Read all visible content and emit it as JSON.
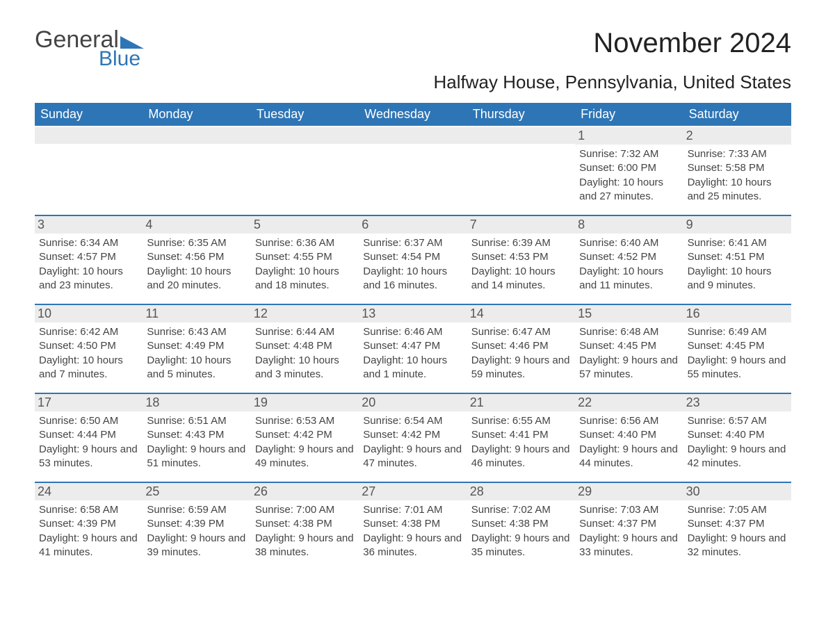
{
  "logo": {
    "text1": "General",
    "text2": "Blue"
  },
  "title": "November 2024",
  "location": "Halfway House, Pennsylvania, United States",
  "colors": {
    "accent": "#2e75b6",
    "header_bg": "#2e75b6",
    "daynum_bg": "#ececec",
    "text": "#333333",
    "background": "#ffffff"
  },
  "calendar": {
    "weekdays": [
      "Sunday",
      "Monday",
      "Tuesday",
      "Wednesday",
      "Thursday",
      "Friday",
      "Saturday"
    ],
    "weeks": [
      [
        null,
        null,
        null,
        null,
        null,
        {
          "day": 1,
          "sunrise": "7:32 AM",
          "sunset": "6:00 PM",
          "daylight": "10 hours and 27 minutes."
        },
        {
          "day": 2,
          "sunrise": "7:33 AM",
          "sunset": "5:58 PM",
          "daylight": "10 hours and 25 minutes."
        }
      ],
      [
        {
          "day": 3,
          "sunrise": "6:34 AM",
          "sunset": "4:57 PM",
          "daylight": "10 hours and 23 minutes."
        },
        {
          "day": 4,
          "sunrise": "6:35 AM",
          "sunset": "4:56 PM",
          "daylight": "10 hours and 20 minutes."
        },
        {
          "day": 5,
          "sunrise": "6:36 AM",
          "sunset": "4:55 PM",
          "daylight": "10 hours and 18 minutes."
        },
        {
          "day": 6,
          "sunrise": "6:37 AM",
          "sunset": "4:54 PM",
          "daylight": "10 hours and 16 minutes."
        },
        {
          "day": 7,
          "sunrise": "6:39 AM",
          "sunset": "4:53 PM",
          "daylight": "10 hours and 14 minutes."
        },
        {
          "day": 8,
          "sunrise": "6:40 AM",
          "sunset": "4:52 PM",
          "daylight": "10 hours and 11 minutes."
        },
        {
          "day": 9,
          "sunrise": "6:41 AM",
          "sunset": "4:51 PM",
          "daylight": "10 hours and 9 minutes."
        }
      ],
      [
        {
          "day": 10,
          "sunrise": "6:42 AM",
          "sunset": "4:50 PM",
          "daylight": "10 hours and 7 minutes."
        },
        {
          "day": 11,
          "sunrise": "6:43 AM",
          "sunset": "4:49 PM",
          "daylight": "10 hours and 5 minutes."
        },
        {
          "day": 12,
          "sunrise": "6:44 AM",
          "sunset": "4:48 PM",
          "daylight": "10 hours and 3 minutes."
        },
        {
          "day": 13,
          "sunrise": "6:46 AM",
          "sunset": "4:47 PM",
          "daylight": "10 hours and 1 minute."
        },
        {
          "day": 14,
          "sunrise": "6:47 AM",
          "sunset": "4:46 PM",
          "daylight": "9 hours and 59 minutes."
        },
        {
          "day": 15,
          "sunrise": "6:48 AM",
          "sunset": "4:45 PM",
          "daylight": "9 hours and 57 minutes."
        },
        {
          "day": 16,
          "sunrise": "6:49 AM",
          "sunset": "4:45 PM",
          "daylight": "9 hours and 55 minutes."
        }
      ],
      [
        {
          "day": 17,
          "sunrise": "6:50 AM",
          "sunset": "4:44 PM",
          "daylight": "9 hours and 53 minutes."
        },
        {
          "day": 18,
          "sunrise": "6:51 AM",
          "sunset": "4:43 PM",
          "daylight": "9 hours and 51 minutes."
        },
        {
          "day": 19,
          "sunrise": "6:53 AM",
          "sunset": "4:42 PM",
          "daylight": "9 hours and 49 minutes."
        },
        {
          "day": 20,
          "sunrise": "6:54 AM",
          "sunset": "4:42 PM",
          "daylight": "9 hours and 47 minutes."
        },
        {
          "day": 21,
          "sunrise": "6:55 AM",
          "sunset": "4:41 PM",
          "daylight": "9 hours and 46 minutes."
        },
        {
          "day": 22,
          "sunrise": "6:56 AM",
          "sunset": "4:40 PM",
          "daylight": "9 hours and 44 minutes."
        },
        {
          "day": 23,
          "sunrise": "6:57 AM",
          "sunset": "4:40 PM",
          "daylight": "9 hours and 42 minutes."
        }
      ],
      [
        {
          "day": 24,
          "sunrise": "6:58 AM",
          "sunset": "4:39 PM",
          "daylight": "9 hours and 41 minutes."
        },
        {
          "day": 25,
          "sunrise": "6:59 AM",
          "sunset": "4:39 PM",
          "daylight": "9 hours and 39 minutes."
        },
        {
          "day": 26,
          "sunrise": "7:00 AM",
          "sunset": "4:38 PM",
          "daylight": "9 hours and 38 minutes."
        },
        {
          "day": 27,
          "sunrise": "7:01 AM",
          "sunset": "4:38 PM",
          "daylight": "9 hours and 36 minutes."
        },
        {
          "day": 28,
          "sunrise": "7:02 AM",
          "sunset": "4:38 PM",
          "daylight": "9 hours and 35 minutes."
        },
        {
          "day": 29,
          "sunrise": "7:03 AM",
          "sunset": "4:37 PM",
          "daylight": "9 hours and 33 minutes."
        },
        {
          "day": 30,
          "sunrise": "7:05 AM",
          "sunset": "4:37 PM",
          "daylight": "9 hours and 32 minutes."
        }
      ]
    ],
    "labels": {
      "sunrise": "Sunrise: ",
      "sunset": "Sunset: ",
      "daylight": "Daylight: "
    }
  }
}
